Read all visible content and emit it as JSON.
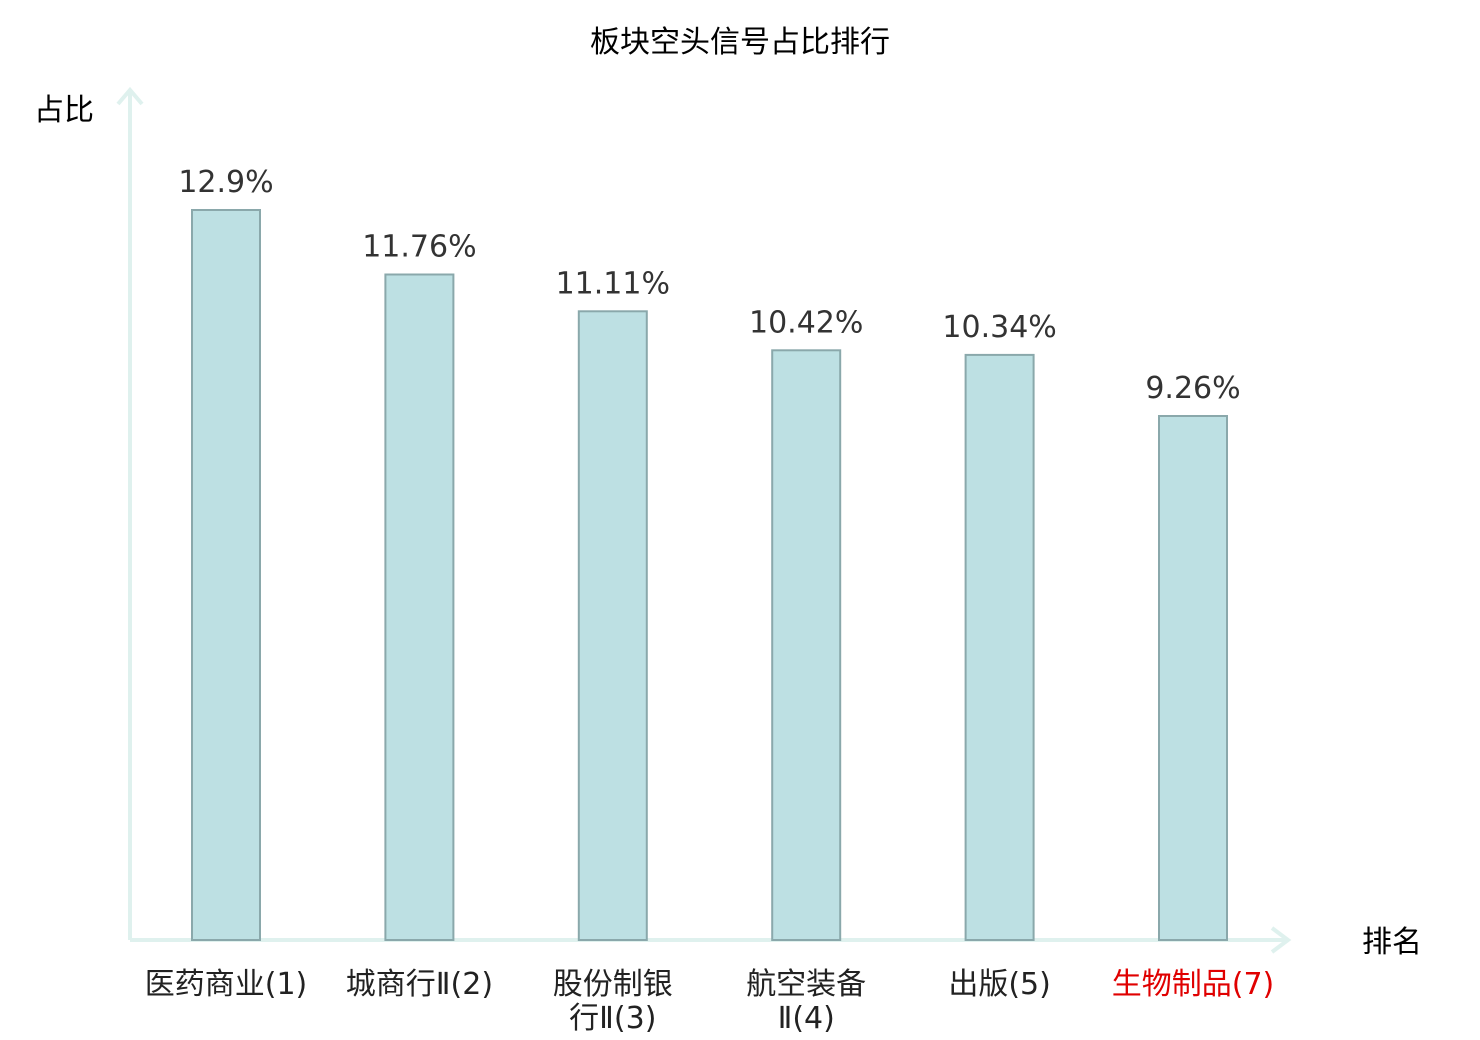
{
  "chart_data": {
    "type": "bar",
    "title": "板块空头信号占比排行",
    "ylabel": "占比",
    "xlabel": "排名",
    "categories": [
      [
        "医药商业(1)"
      ],
      [
        "城商行Ⅱ(2)"
      ],
      [
        "股份制银",
        "行Ⅱ(3)"
      ],
      [
        "航空装备",
        "Ⅱ(4)"
      ],
      [
        "出版(5)"
      ],
      [
        "生物制品(7)"
      ]
    ],
    "values": [
      12.9,
      11.76,
      11.11,
      10.42,
      10.34,
      9.26
    ],
    "value_labels": [
      "12.9%",
      "11.76%",
      "11.11%",
      "10.42%",
      "10.34%",
      "9.26%"
    ],
    "highlight_index": 5,
    "ylim": [
      0,
      13.5
    ],
    "grid": false,
    "colors": {
      "bar_fill": "#bde0e3",
      "bar_stroke": "#8aa8ab",
      "axis": "#dff1ee",
      "highlight_text": "#e00000",
      "text": "#222222"
    }
  }
}
